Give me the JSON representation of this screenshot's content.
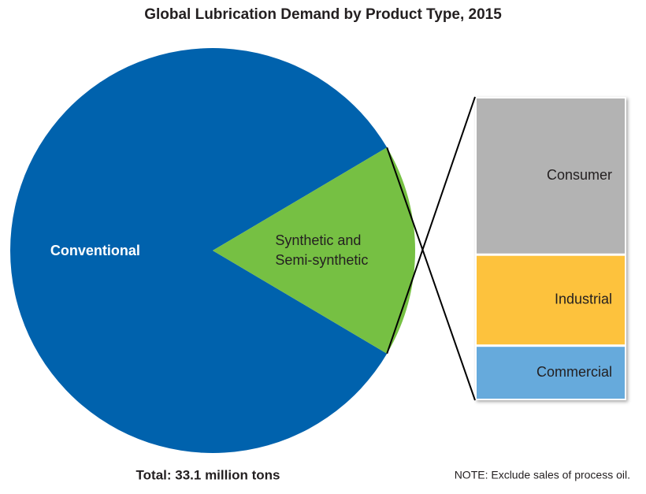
{
  "chart_data": {
    "type": "pie-of-bar",
    "title": "Global Lubrication Demand by Product Type, 2015",
    "pie": {
      "categories": [
        "Conventional",
        "Synthetic and Semi-synthetic"
      ],
      "values": [
        83,
        17
      ],
      "colors": [
        "#0062ad",
        "#76c043"
      ],
      "label_colors": [
        "#ffffff",
        "#231f20"
      ]
    },
    "expanded_slice": 1,
    "bar": {
      "categories": [
        "Consumer",
        "Industrial",
        "Commercial"
      ],
      "values": [
        52,
        30,
        18
      ],
      "colors": [
        "#b3b3b3",
        "#fdc23e",
        "#66aadc"
      ]
    },
    "total": "Total: 33.1 million tons",
    "note": "NOTE: Exclude sales of process oil."
  }
}
